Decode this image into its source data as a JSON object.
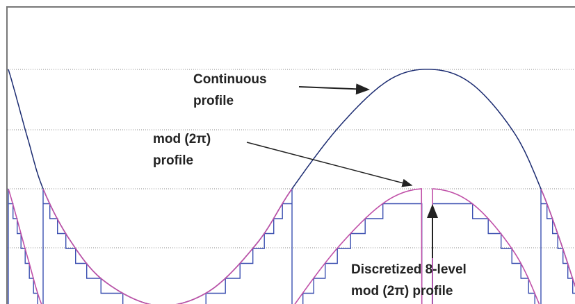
{
  "annotations": {
    "continuous": [
      "Continuous",
      "profile"
    ],
    "mod": [
      "mod (2π)",
      "profile"
    ],
    "discretized": [
      "Discretized 8-level",
      "mod (2π) profile"
    ]
  }
}
